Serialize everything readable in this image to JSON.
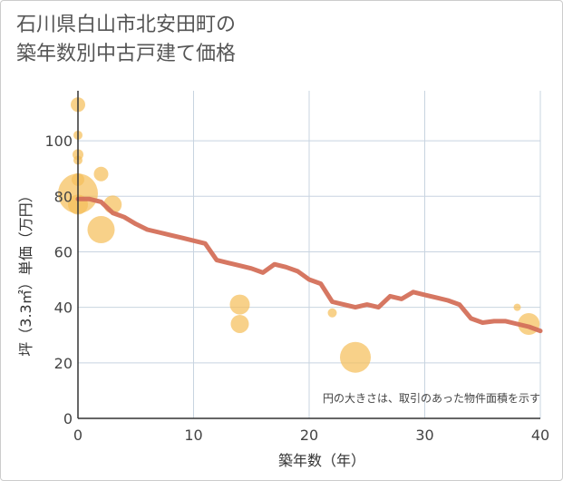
{
  "title_lines": [
    "石川県白山市北安田町の",
    "築年数別中古戸建て価格"
  ],
  "colors": {
    "bubble": "#f5bf5b",
    "line": "#d4705a",
    "grid": "#c8d4e0",
    "axis": "#333333"
  },
  "chart_data": {
    "type": "scatter",
    "xlabel": "築年数（年）",
    "ylabel": "坪（3.3㎡）単価（万円）",
    "xlim": [
      0,
      40
    ],
    "ylim": [
      0,
      118
    ],
    "xticks": [
      0,
      10,
      20,
      30,
      40
    ],
    "yticks": [
      0,
      20,
      40,
      60,
      80,
      100
    ],
    "note": "円の大きさは、取引のあった物件面積を示す",
    "bubbles": [
      {
        "x": 0,
        "y": 113,
        "size": 8
      },
      {
        "x": 0,
        "y": 102,
        "size": 5
      },
      {
        "x": 0,
        "y": 95,
        "size": 6
      },
      {
        "x": 0,
        "y": 93,
        "size": 5
      },
      {
        "x": 0,
        "y": 86,
        "size": 7
      },
      {
        "x": 0,
        "y": 81,
        "size": 22
      },
      {
        "x": 0,
        "y": 77,
        "size": 11
      },
      {
        "x": 2,
        "y": 88,
        "size": 8
      },
      {
        "x": 2,
        "y": 68,
        "size": 15
      },
      {
        "x": 3,
        "y": 77,
        "size": 10
      },
      {
        "x": 14,
        "y": 41,
        "size": 11
      },
      {
        "x": 14,
        "y": 34,
        "size": 10
      },
      {
        "x": 22,
        "y": 38,
        "size": 5
      },
      {
        "x": 24,
        "y": 22,
        "size": 17
      },
      {
        "x": 38,
        "y": 40,
        "size": 4
      },
      {
        "x": 39,
        "y": 34,
        "size": 12
      }
    ],
    "trend": {
      "x": [
        0,
        1,
        2,
        3,
        4,
        5,
        6,
        7,
        8,
        9,
        10,
        11,
        12,
        13,
        14,
        15,
        16,
        17,
        18,
        19,
        20,
        21,
        22,
        23,
        24,
        25,
        26,
        27,
        28,
        29,
        30,
        31,
        32,
        33,
        34,
        35,
        36,
        37,
        38,
        39,
        40
      ],
      "y": [
        79,
        79,
        78,
        74,
        72.5,
        70,
        68,
        67,
        66,
        65,
        64,
        63,
        57,
        56,
        55,
        54,
        52.5,
        55.5,
        54.5,
        53,
        50,
        48.5,
        42,
        41,
        40,
        41,
        40,
        44,
        43,
        45.5,
        44.5,
        43.5,
        42.5,
        41,
        36,
        34.5,
        35,
        35,
        34,
        33,
        31.5
      ]
    }
  }
}
